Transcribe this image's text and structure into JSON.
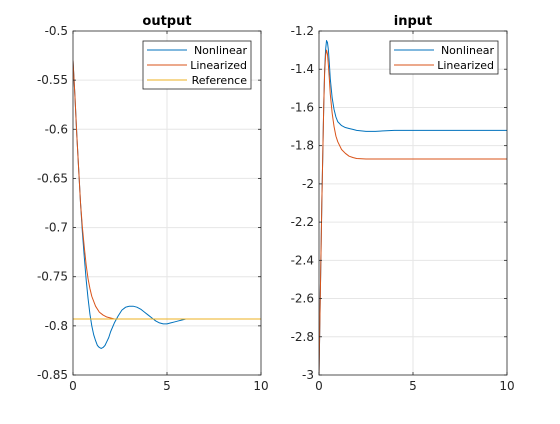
{
  "chart_data": [
    {
      "type": "line",
      "title": "output",
      "xlabel": "",
      "ylabel": "",
      "xlim": [
        0,
        10
      ],
      "ylim": [
        -0.85,
        -0.5
      ],
      "xticks": [
        0,
        5,
        10
      ],
      "xtick_labels": [
        "0",
        "5",
        "10"
      ],
      "yticks": [
        -0.85,
        -0.8,
        -0.75,
        -0.7,
        -0.65,
        -0.6,
        -0.55,
        -0.5
      ],
      "ytick_labels": [
        "-0.85",
        "-0.8",
        "-0.75",
        "-0.7",
        "-0.65",
        "-0.6",
        "-0.55",
        "-0.5"
      ],
      "grid": true,
      "legend_position": "top-right",
      "series": [
        {
          "name": "Nonlinear",
          "color": "#0072BD",
          "x": [
            0,
            0.1,
            0.2,
            0.3,
            0.4,
            0.5,
            0.6,
            0.7,
            0.8,
            0.9,
            1.0,
            1.1,
            1.2,
            1.3,
            1.4,
            1.5,
            1.6,
            1.7,
            1.8,
            1.9,
            2.0,
            2.2,
            2.4,
            2.6,
            2.8,
            3.0,
            3.2,
            3.4,
            3.6,
            3.8,
            4.0,
            4.2,
            4.4,
            4.6,
            4.8,
            5.0,
            5.2,
            5.4,
            5.6,
            5.8,
            6.0,
            6.3,
            6.6,
            7.0,
            7.5,
            7.9
          ],
          "y": [
            -0.53,
            -0.565,
            -0.605,
            -0.64,
            -0.675,
            -0.705,
            -0.73,
            -0.753,
            -0.772,
            -0.788,
            -0.8,
            -0.809,
            -0.815,
            -0.82,
            -0.822,
            -0.823,
            -0.822,
            -0.82,
            -0.816,
            -0.812,
            -0.806,
            -0.797,
            -0.79,
            -0.784,
            -0.781,
            -0.78,
            -0.78,
            -0.781,
            -0.783,
            -0.786,
            -0.789,
            -0.792,
            -0.795,
            -0.797,
            -0.798,
            -0.798,
            -0.797,
            -0.796,
            -0.795,
            -0.794,
            -0.793,
            -0.793,
            -0.793,
            -0.793,
            -0.793,
            -0.793
          ]
        },
        {
          "name": "Linearized",
          "color": "#D95319",
          "x": [
            0,
            0.1,
            0.2,
            0.3,
            0.4,
            0.5,
            0.6,
            0.7,
            0.8,
            0.9,
            1.0,
            1.2,
            1.4,
            1.6,
            1.8,
            2.0,
            2.2,
            2.5,
            3.0,
            3.5,
            4.0,
            5.0,
            6.0,
            7.0,
            7.9
          ],
          "y": [
            -0.53,
            -0.565,
            -0.605,
            -0.64,
            -0.675,
            -0.7,
            -0.72,
            -0.738,
            -0.752,
            -0.762,
            -0.77,
            -0.78,
            -0.786,
            -0.789,
            -0.791,
            -0.792,
            -0.793,
            -0.793,
            -0.793,
            -0.793,
            -0.793,
            -0.793,
            -0.793,
            -0.793,
            -0.793
          ]
        },
        {
          "name": "Reference",
          "color": "#EDB120",
          "x": [
            0,
            10
          ],
          "y": [
            -0.793,
            -0.793
          ]
        }
      ]
    },
    {
      "type": "line",
      "title": "input",
      "xlabel": "",
      "ylabel": "",
      "xlim": [
        0,
        10
      ],
      "ylim": [
        -3,
        -1.2
      ],
      "xticks": [
        0,
        5,
        10
      ],
      "xtick_labels": [
        "0",
        "5",
        "10"
      ],
      "yticks": [
        -3,
        -2.8,
        -2.6,
        -2.4,
        -2.2,
        -2,
        -1.8,
        -1.6,
        -1.4,
        -1.2
      ],
      "ytick_labels": [
        "-3",
        "-2.8",
        "-2.6",
        "-2.4",
        "-2.2",
        "-2",
        "-1.8",
        "-1.6",
        "-1.4",
        "-1.2"
      ],
      "grid": true,
      "legend_position": "top-right",
      "series": [
        {
          "name": "Nonlinear",
          "color": "#0072BD",
          "x": [
            0,
            0.05,
            0.1,
            0.15,
            0.2,
            0.25,
            0.3,
            0.35,
            0.4,
            0.45,
            0.5,
            0.55,
            0.6,
            0.7,
            0.8,
            0.9,
            1.0,
            1.2,
            1.4,
            1.6,
            1.8,
            2.0,
            2.5,
            3.0,
            4.0,
            5.0,
            6.0,
            7.0,
            8.0,
            9.0,
            10.0
          ],
          "y": [
            -3.0,
            -2.7,
            -2.4,
            -2.1,
            -1.85,
            -1.6,
            -1.4,
            -1.3,
            -1.25,
            -1.26,
            -1.3,
            -1.37,
            -1.45,
            -1.55,
            -1.61,
            -1.65,
            -1.675,
            -1.695,
            -1.705,
            -1.71,
            -1.715,
            -1.72,
            -1.725,
            -1.725,
            -1.72,
            -1.72,
            -1.72,
            -1.72,
            -1.72,
            -1.72,
            -1.72
          ]
        },
        {
          "name": "Linearized",
          "color": "#D95319",
          "x": [
            0,
            0.05,
            0.1,
            0.15,
            0.2,
            0.25,
            0.3,
            0.35,
            0.4,
            0.45,
            0.5,
            0.55,
            0.6,
            0.7,
            0.8,
            0.9,
            1.0,
            1.2,
            1.4,
            1.6,
            1.8,
            2.0,
            2.5,
            3.0,
            4.0,
            5.0,
            6.0,
            7.0,
            8.0,
            9.0,
            10.0
          ],
          "y": [
            -3.0,
            -2.7,
            -2.4,
            -2.1,
            -1.85,
            -1.6,
            -1.42,
            -1.33,
            -1.3,
            -1.32,
            -1.38,
            -1.45,
            -1.53,
            -1.63,
            -1.7,
            -1.75,
            -1.78,
            -1.82,
            -1.84,
            -1.855,
            -1.862,
            -1.867,
            -1.87,
            -1.87,
            -1.87,
            -1.87,
            -1.87,
            -1.87,
            -1.87,
            -1.87,
            -1.87
          ]
        }
      ]
    }
  ],
  "style": {
    "axis_color": "#262626",
    "grid_color": "#e6e6e6",
    "background": "#ffffff"
  }
}
